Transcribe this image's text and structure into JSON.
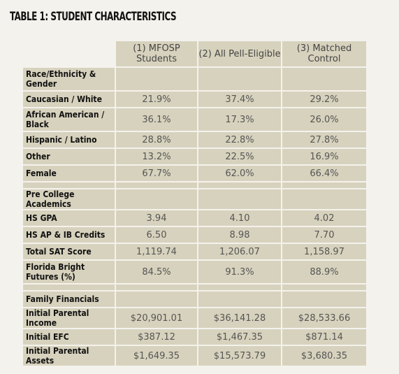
{
  "title": "TABLE 1: STUDENT CHARACTERISTICS",
  "columns": [
    "(1) MFOSP Students",
    "(2) All Pell-Eligible",
    "(3) Matched Control"
  ],
  "sections": [
    {
      "heading": "Race/Ethnicity & Gender",
      "rows": [
        {
          "label": "Caucasian / White",
          "values": [
            "21.9%",
            "37.4%",
            "29.2%"
          ]
        },
        {
          "label": "African American / Black",
          "values": [
            "36.1%",
            "17.3%",
            "26.0%"
          ]
        },
        {
          "label": "Hispanic / Latino",
          "values": [
            "28.8%",
            "22.8%",
            "27.8%"
          ]
        },
        {
          "label": "Other",
          "values": [
            "13.2%",
            "22.5%",
            "16.9%"
          ]
        },
        {
          "label": "Female",
          "values": [
            "67.7%",
            "62.0%",
            "66.4%"
          ]
        }
      ]
    },
    {
      "heading": "Pre College Academics",
      "rows": [
        {
          "label": "HS GPA",
          "values": [
            "3.94",
            "4.10",
            "4.02"
          ]
        },
        {
          "label": "HS AP & IB Credits",
          "values": [
            "6.50",
            "8.98",
            "7.70"
          ]
        },
        {
          "label": "Total SAT Score",
          "values": [
            "1,119.74",
            "1,206.07",
            "1,158.97"
          ]
        },
        {
          "label": "Florida Bright Futures (%)",
          "values": [
            "84.5%",
            "91.3%",
            "88.9%"
          ]
        }
      ]
    },
    {
      "heading": "Family Financials",
      "rows": [
        {
          "label": "Initial Parental Income",
          "values": [
            "$20,901.01",
            "$36,141.28",
            "$28,533.66"
          ]
        },
        {
          "label": "Initial EFC",
          "values": [
            "$387.12",
            "$1,467.35",
            "$871.14"
          ]
        },
        {
          "label": "Initial Parental Assets",
          "values": [
            "$1,649.35",
            "$15,573.79",
            "$3,680.35"
          ]
        }
      ]
    }
  ]
}
